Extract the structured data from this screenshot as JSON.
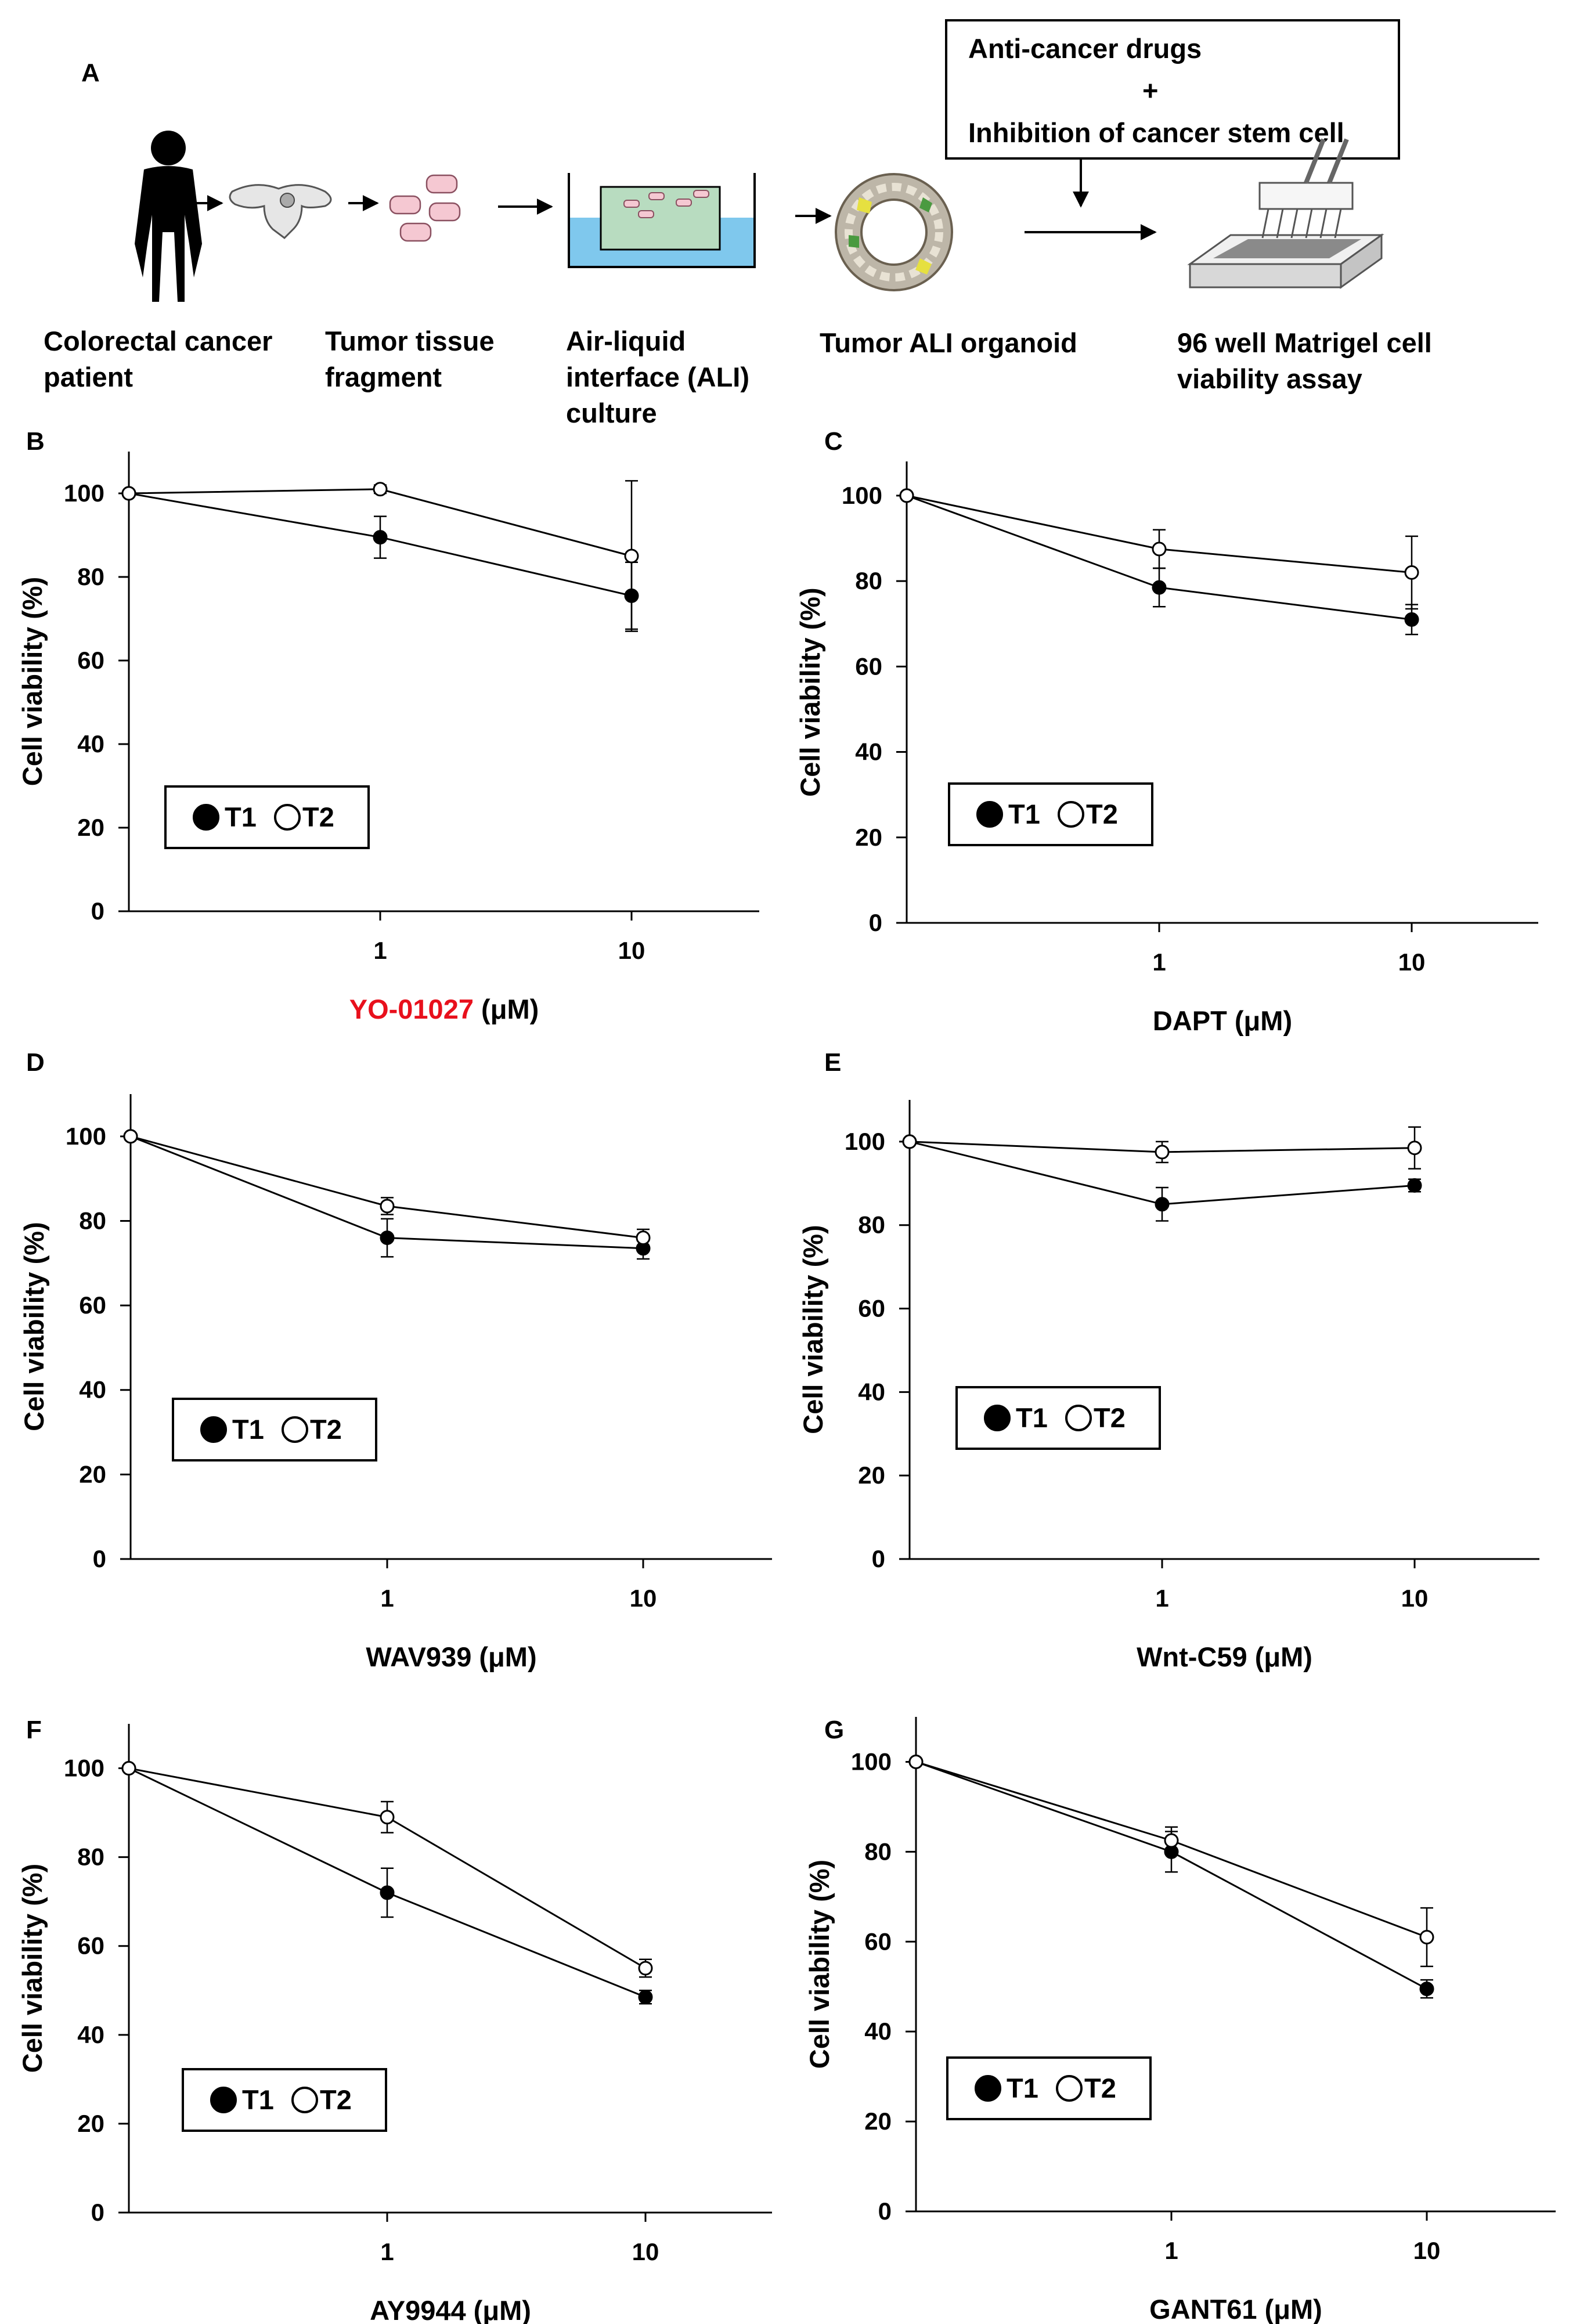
{
  "panel_a": {
    "letter": "A",
    "drug_box": {
      "line1": "Anti-cancer drugs",
      "line2": "+",
      "line3": "Inhibition of cancer stem cell"
    },
    "steps": [
      {
        "line1": "Colorectal cancer",
        "line2": "patient"
      },
      {
        "line1": "Tumor tissue",
        "line2": "fragment"
      },
      {
        "line1": "Air-liquid",
        "line2": "interface (ALI)",
        "line3": "culture"
      },
      {
        "line1": "Tumor ALI organoid"
      },
      {
        "line1": "96 well Matrigel cell",
        "line2": "viability assay"
      }
    ]
  },
  "colors": {
    "highlight": "#e8101c",
    "medium": "#7fc8ed",
    "organoid_medium": "#b8dcc0",
    "fragment": "#f5c8d2"
  },
  "chart_data": [
    {
      "panel": "B",
      "type": "line",
      "title": "",
      "xlabel_highlight": "YO-01027",
      "xlabel_rest": " (μM)",
      "ylabel": "Cell viability (%)",
      "x": [
        0.1,
        1,
        10
      ],
      "xticks": [
        "1",
        "10"
      ],
      "ylim": [
        0,
        110
      ],
      "yticks": [
        "0",
        "20",
        "40",
        "60",
        "80",
        "100"
      ],
      "legend": {
        "t1": "T1",
        "t2": "T2"
      },
      "series": [
        {
          "name": "T1",
          "marker": "filled",
          "values": [
            100,
            89.5,
            75.5
          ],
          "errors": [
            0,
            5,
            8
          ]
        },
        {
          "name": "T2",
          "marker": "open",
          "values": [
            100,
            101,
            85
          ],
          "errors": [
            0,
            1,
            18
          ]
        }
      ]
    },
    {
      "panel": "C",
      "type": "line",
      "title": "",
      "xlabel": "DAPT (μM)",
      "ylabel": "Cell viability (%)",
      "x": [
        0.1,
        1,
        10
      ],
      "xticks": [
        "1",
        "10"
      ],
      "ylim": [
        0,
        108
      ],
      "yticks": [
        "0",
        "20",
        "40",
        "60",
        "80",
        "100"
      ],
      "legend": {
        "t1": "T1",
        "t2": "T2"
      },
      "series": [
        {
          "name": "T1",
          "marker": "filled",
          "values": [
            100,
            78.5,
            71
          ],
          "errors": [
            0,
            4.5,
            3.5
          ]
        },
        {
          "name": "T2",
          "marker": "open",
          "values": [
            100,
            87.5,
            82
          ],
          "errors": [
            0,
            4.5,
            8.5
          ]
        }
      ]
    },
    {
      "panel": "D",
      "type": "line",
      "title": "",
      "xlabel": "WAV939 (μM)",
      "ylabel": "Cell viability (%)",
      "x": [
        0.1,
        1,
        10
      ],
      "xticks": [
        "1",
        "10"
      ],
      "ylim": [
        0,
        110
      ],
      "yticks": [
        "0",
        "20",
        "40",
        "60",
        "80",
        "100"
      ],
      "legend": {
        "t1": "T1",
        "t2": "T2"
      },
      "series": [
        {
          "name": "T1",
          "marker": "filled",
          "values": [
            100,
            76,
            73.5
          ],
          "errors": [
            0,
            4.5,
            2.5
          ]
        },
        {
          "name": "T2",
          "marker": "open",
          "values": [
            100,
            83.5,
            76
          ],
          "errors": [
            0,
            2,
            2
          ]
        }
      ]
    },
    {
      "panel": "E",
      "type": "line",
      "title": "",
      "xlabel": "Wnt-C59 (μM)",
      "ylabel": "Cell viability (%)",
      "x": [
        0.1,
        1,
        10
      ],
      "xticks": [
        "1",
        "10"
      ],
      "ylim": [
        0,
        110
      ],
      "yticks": [
        "0",
        "20",
        "40",
        "60",
        "80",
        "100"
      ],
      "legend": {
        "t1": "T1",
        "t2": "T2"
      },
      "series": [
        {
          "name": "T1",
          "marker": "filled",
          "values": [
            100,
            85,
            89.5
          ],
          "errors": [
            0,
            4,
            1.5
          ]
        },
        {
          "name": "T2",
          "marker": "open",
          "values": [
            100,
            97.5,
            98.5
          ],
          "errors": [
            0,
            2.5,
            5
          ]
        }
      ]
    },
    {
      "panel": "F",
      "type": "line",
      "title": "",
      "xlabel": "AY9944 (μM)",
      "ylabel": "Cell viability (%)",
      "x": [
        0.1,
        1,
        10
      ],
      "xticks": [
        "1",
        "10"
      ],
      "ylim": [
        0,
        110
      ],
      "yticks": [
        "0",
        "20",
        "40",
        "60",
        "80",
        "100"
      ],
      "legend": {
        "t1": "T1",
        "t2": "T2"
      },
      "series": [
        {
          "name": "T1",
          "marker": "filled",
          "values": [
            100,
            72,
            48.5
          ],
          "errors": [
            0,
            5.5,
            1.5
          ]
        },
        {
          "name": "T2",
          "marker": "open",
          "values": [
            100,
            89,
            55
          ],
          "errors": [
            0,
            3.5,
            2
          ]
        }
      ]
    },
    {
      "panel": "G",
      "type": "line",
      "title": "",
      "xlabel": "GANT61 (μM)",
      "ylabel": "Cell viability (%)",
      "x": [
        0.1,
        1,
        10
      ],
      "xticks": [
        "1",
        "10"
      ],
      "ylim": [
        0,
        110
      ],
      "yticks": [
        "0",
        "20",
        "40",
        "60",
        "80",
        "100"
      ],
      "legend": {
        "t1": "T1",
        "t2": "T2"
      },
      "series": [
        {
          "name": "T1",
          "marker": "filled",
          "values": [
            100,
            80,
            49.5
          ],
          "errors": [
            0,
            4.5,
            2
          ]
        },
        {
          "name": "T2",
          "marker": "open",
          "values": [
            100,
            82.5,
            61
          ],
          "errors": [
            0,
            3,
            6.5
          ]
        }
      ]
    }
  ]
}
